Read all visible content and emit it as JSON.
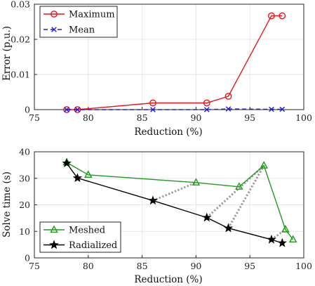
{
  "chart_data": [
    {
      "type": "line",
      "xlabel": "Reduction (%)",
      "ylabel": "Error (p.u.)",
      "xlim": [
        75,
        100
      ],
      "ylim": [
        0,
        0.03
      ],
      "xticks": [
        "75",
        "80",
        "85",
        "90",
        "95",
        "100"
      ],
      "yticks": [
        "0",
        "0.01",
        "0.02",
        "0.03"
      ],
      "grid": true,
      "legend_position": "top-left",
      "series": [
        {
          "name": "Maximum",
          "color": "#e8141c",
          "line": "solid",
          "marker": "circle",
          "x": [
            78,
            79,
            86,
            91,
            93,
            97,
            98
          ],
          "y": [
            0.0,
            0.0,
            0.0019,
            0.0019,
            0.0038,
            0.0267,
            0.0267
          ]
        },
        {
          "name": "Mean",
          "color": "#1a1adf",
          "line": "dashed",
          "marker": "x",
          "x": [
            78,
            79,
            86,
            91,
            93,
            97,
            98
          ],
          "y": [
            0.0,
            0.0,
            0.0,
            0.0,
            0.0002,
            0.0001,
            0.0001
          ]
        }
      ]
    },
    {
      "type": "line",
      "xlabel": "Reduction (%)",
      "ylabel": "Solve time (s)",
      "xlim": [
        75,
        100
      ],
      "ylim": [
        0,
        40
      ],
      "xticks": [
        "75",
        "80",
        "85",
        "90",
        "95",
        "100"
      ],
      "yticks": [
        "0",
        "10",
        "20",
        "30",
        "40"
      ],
      "grid": true,
      "legend_position": "bottom-left",
      "series": [
        {
          "name": "Meshed",
          "color": "#1e9a1e",
          "line": "solid",
          "marker": "triangle",
          "x": [
            78,
            80,
            90,
            94,
            96.3,
            98.3,
            99
          ],
          "y": [
            36,
            31.3,
            28.4,
            26.8,
            34.8,
            10.7,
            6.9
          ]
        },
        {
          "name": "Radialized",
          "color": "#000000",
          "line": "solid",
          "marker": "star",
          "x": [
            78,
            79,
            86,
            91,
            93,
            97,
            98
          ],
          "y": [
            35.7,
            30.1,
            21.6,
            15.2,
            11.2,
            6.9,
            5.6
          ]
        }
      ],
      "connectors": {
        "color": "#999999",
        "line": "dotted",
        "pairs": [
          [
            [
              86,
              21.6
            ],
            [
              90,
              28.4
            ]
          ],
          [
            [
              91,
              15.2
            ],
            [
              96.3,
              34.8
            ]
          ],
          [
            [
              93,
              11.2
            ],
            [
              96.3,
              34.8
            ]
          ],
          [
            [
              97,
              6.9
            ],
            [
              98.3,
              10.7
            ]
          ]
        ]
      }
    }
  ]
}
